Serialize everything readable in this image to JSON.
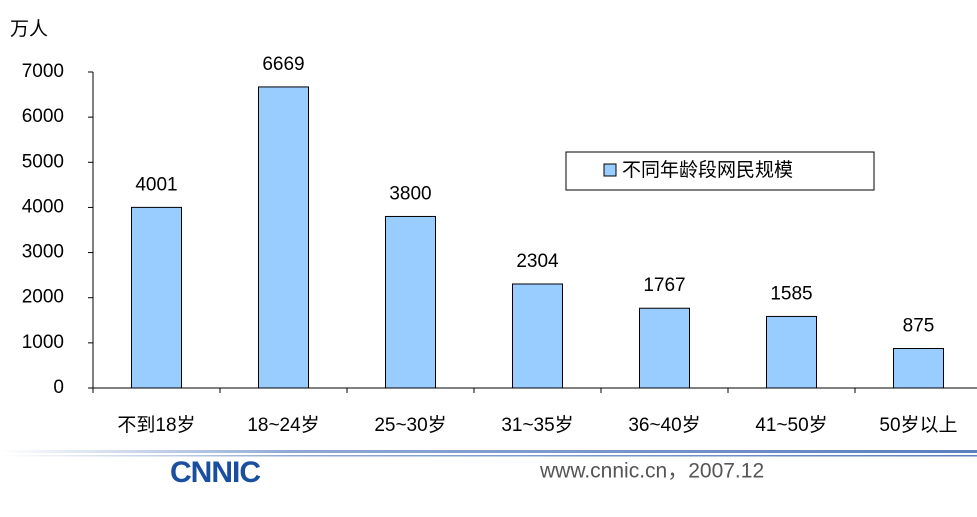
{
  "chart_data": {
    "type": "bar",
    "y_label": "万人",
    "categories": [
      "不到18岁",
      "18~24岁",
      "25~30岁",
      "31~35岁",
      "36~40岁",
      "41~50岁",
      "50岁以上"
    ],
    "series": [
      {
        "name": "不同年龄段网民规模",
        "color": "#99ccff",
        "values": [
          4001,
          6669,
          3800,
          2304,
          1767,
          1585,
          875
        ]
      }
    ],
    "ylim": [
      0,
      7000
    ],
    "yticks": [
      0,
      1000,
      2000,
      3000,
      4000,
      5000,
      6000,
      7000
    ],
    "legend": "upper right",
    "grid": false
  },
  "footer": {
    "logo": "CNNIC",
    "source": "www.cnnic.cn，2007.12"
  }
}
